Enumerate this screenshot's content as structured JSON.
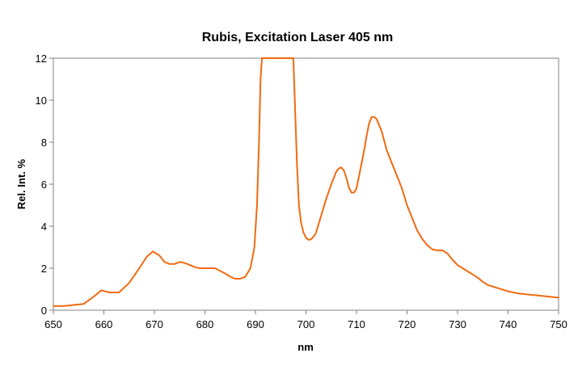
{
  "chart_data": {
    "type": "line",
    "title": "Rubis, Excitation Laser 405 nm",
    "xlabel": "nm",
    "ylabel": "Rel. Int. %",
    "xlim": [
      650,
      750
    ],
    "ylim": [
      0,
      12
    ],
    "xticks": [
      "650",
      "660",
      "670",
      "680",
      "690",
      "700",
      "710",
      "720",
      "730",
      "740",
      "750"
    ],
    "yticks": [
      "0",
      "2",
      "4",
      "6",
      "8",
      "10",
      "12"
    ],
    "grid": false,
    "legend": "none",
    "line_color": "#F26A10",
    "series": [
      {
        "x": [
          650,
          652,
          654,
          656,
          658,
          659.5,
          661,
          663,
          665,
          667,
          668.5,
          669.7,
          671,
          672,
          673,
          674,
          675,
          676,
          677,
          678,
          679,
          680,
          682,
          684,
          685,
          686,
          687,
          688,
          689,
          689.8,
          690.3,
          690.7,
          691,
          691.3,
          697.5,
          697.8,
          698.2,
          698.6,
          699,
          699.5,
          700,
          700.5,
          701,
          701.5,
          702,
          702.5,
          703,
          704,
          705,
          706,
          706.5,
          707,
          707.5,
          708,
          708.5,
          709,
          709.5,
          710,
          711,
          711.5,
          712,
          712.5,
          713,
          713.5,
          714,
          714.5,
          715,
          716,
          717,
          718,
          719,
          720,
          721,
          722,
          723,
          724,
          725,
          726,
          727,
          728,
          729,
          730,
          732,
          734,
          735,
          736,
          738,
          740,
          742,
          744,
          746,
          748,
          750
        ],
        "y": [
          0.2,
          0.2,
          0.25,
          0.3,
          0.65,
          0.95,
          0.85,
          0.85,
          1.3,
          2.0,
          2.55,
          2.8,
          2.6,
          2.3,
          2.2,
          2.2,
          2.3,
          2.25,
          2.15,
          2.05,
          2.0,
          2.0,
          2.0,
          1.75,
          1.6,
          1.5,
          1.5,
          1.6,
          2.0,
          3.0,
          5.0,
          8.0,
          11.0,
          12.0,
          12.0,
          10.0,
          7.0,
          5.0,
          4.2,
          3.7,
          3.45,
          3.35,
          3.38,
          3.5,
          3.7,
          4.1,
          4.5,
          5.3,
          6.0,
          6.6,
          6.75,
          6.8,
          6.65,
          6.3,
          5.85,
          5.6,
          5.6,
          5.8,
          7.0,
          7.6,
          8.3,
          8.9,
          9.2,
          9.2,
          9.1,
          8.8,
          8.5,
          7.6,
          7.0,
          6.4,
          5.8,
          5.0,
          4.4,
          3.8,
          3.4,
          3.1,
          2.9,
          2.85,
          2.85,
          2.7,
          2.4,
          2.15,
          1.85,
          1.55,
          1.35,
          1.2,
          1.05,
          0.9,
          0.8,
          0.75,
          0.7,
          0.65,
          0.6
        ]
      }
    ]
  }
}
